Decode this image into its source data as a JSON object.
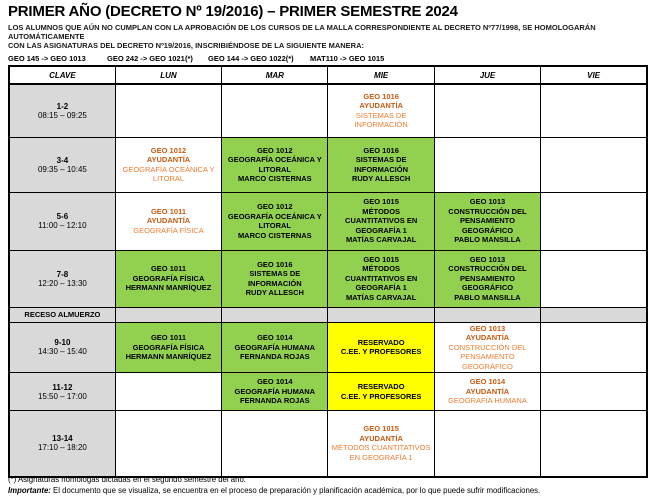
{
  "header": {
    "title": "PRIMER AÑO (DECRETO Nº 19/2016) – PRIMER SEMESTRE 2024",
    "note_line1": "LOS ALUMNOS QUE AÚN NO CUMPLAN CON LA APROBACIÓN DE LOS CURSOS DE LA MALLA CORRESPONDIENTE AL DECRETO Nº77/1998, SE HOMOLOGARÁN AUTOMÁTICAMENTE",
    "note_line2": "CON LAS ASIGNATURAS DEL DECRETO Nº19/2016, INSCRIBIÉNDOSE DE LA SIGUIENTE MANERA:",
    "mappings": [
      "GEO 145 -> GEO 1013",
      "GEO 242 -> GEO 1021",
      "(*)",
      "GEO 144 -> GEO 1022(*)",
      "MAT110 -> GEO 1015"
    ]
  },
  "colors": {
    "green": "#92D050",
    "yellow": "#FFFF00",
    "gray": "#D9D9D9",
    "orange_bold": "#C55A11",
    "orange_light": "#ED7D31"
  },
  "table": {
    "columns": [
      "CLAVE",
      "LUN",
      "MAR",
      "MIE",
      "JUE",
      "VIE"
    ],
    "receso_label": "RECESO ALMUERZO",
    "rows": [
      {
        "clave": "1-2",
        "time": "08:15 – 09:25",
        "cells": [
          null,
          null,
          {
            "bg": "white",
            "lines": [
              [
                "GEO 1016",
                "ob"
              ],
              [
                "AYUDANTÍA",
                "ob"
              ],
              [
                "SISTEMAS DE INFORMACIÓN",
                "on"
              ]
            ]
          },
          null,
          null
        ]
      },
      {
        "clave": "3-4",
        "time": "09:35 – 10:45",
        "cells": [
          {
            "bg": "white",
            "lines": [
              [
                "GEO 1012",
                "ob"
              ],
              [
                "AYUDANTÍA",
                "ob"
              ],
              [
                "GEOGRAFÍA OCEÁNICA Y LITORAL",
                "on"
              ]
            ]
          },
          {
            "bg": "green",
            "lines": [
              [
                "GEO 1012",
                "b"
              ],
              [
                "GEOGRAFÍA OCEÁNICA Y LITORAL",
                "n"
              ],
              [
                "MARCO CISTERNAS",
                "n"
              ]
            ]
          },
          {
            "bg": "green",
            "lines": [
              [
                "GEO 1016",
                "b"
              ],
              [
                "SISTEMAS DE INFORMACIÓN",
                "n"
              ],
              [
                "RUDY ALLESCH",
                "n"
              ]
            ]
          },
          null,
          null
        ]
      },
      {
        "clave": "5-6",
        "time": "11:00 – 12:10",
        "cells": [
          {
            "bg": "white",
            "lines": [
              [
                "GEO 1011",
                "ob"
              ],
              [
                "AYUDANTÍA",
                "ob"
              ],
              [
                "GEOGRAFÍA FÍSICA",
                "on"
              ]
            ]
          },
          {
            "bg": "green",
            "lines": [
              [
                "GEO 1012",
                "b"
              ],
              [
                "GEOGRAFÍA OCEÁNICA Y LITORAL",
                "n"
              ],
              [
                "MARCO CISTERNAS",
                "n"
              ]
            ]
          },
          {
            "bg": "green",
            "lines": [
              [
                "GEO 1015",
                "b"
              ],
              [
                "MÉTODOS CUANTITATIVOS EN GEOGRAFÍA 1",
                "n"
              ],
              [
                "MATÍAS CARVAJAL",
                "n"
              ]
            ]
          },
          {
            "bg": "green",
            "lines": [
              [
                "GEO 1013",
                "b"
              ],
              [
                "CONSTRUCCIÓN DEL PENSAMIENTO GEOGRÁFICO",
                "n"
              ],
              [
                "PABLO MANSILLA",
                "n"
              ]
            ]
          },
          null
        ]
      },
      {
        "clave": "7-8",
        "time": "12:20 – 13:30",
        "cells": [
          {
            "bg": "green",
            "lines": [
              [
                "GEO 1011",
                "b"
              ],
              [
                "GEOGRAFÍA FÍSICA",
                "n"
              ],
              [
                "HERMANN MANRÍQUEZ",
                "n"
              ]
            ]
          },
          {
            "bg": "green",
            "lines": [
              [
                "GEO 1016",
                "b"
              ],
              [
                "SISTEMAS DE INFORMACIÓN",
                "n"
              ],
              [
                "RUDY ALLESCH",
                "n"
              ]
            ]
          },
          {
            "bg": "green",
            "lines": [
              [
                "GEO 1015",
                "b"
              ],
              [
                "MÉTODOS CUANTITATIVOS EN GEOGRAFÍA 1",
                "n"
              ],
              [
                "MATÍAS CARVAJAL",
                "n"
              ]
            ]
          },
          {
            "bg": "green",
            "lines": [
              [
                "GEO 1013",
                "b"
              ],
              [
                "CONSTRUCCIÓN DEL PENSAMIENTO GEOGRÁFICO",
                "n"
              ],
              [
                "PABLO MANSILLA",
                "n"
              ]
            ]
          },
          null
        ]
      },
      {
        "type": "receso"
      },
      {
        "clave": "9-10",
        "time": "14:30 – 15:40",
        "cells": [
          {
            "bg": "green",
            "lines": [
              [
                "GEO 1011",
                "b"
              ],
              [
                "GEOGRAFÍA FÍSICA",
                "n"
              ],
              [
                "HERMANN MANRÍQUEZ",
                "n"
              ]
            ]
          },
          {
            "bg": "green",
            "lines": [
              [
                "GEO 1014",
                "b"
              ],
              [
                "GEOGRAFÍA HUMANA",
                "n"
              ],
              [
                "FERNANDA ROJAS",
                "n"
              ]
            ]
          },
          {
            "bg": "yellow",
            "lines": [
              [
                "RESERVADO",
                "b"
              ],
              [
                "C.EE. Y PROFESORES",
                "b"
              ]
            ]
          },
          {
            "bg": "white",
            "lines": [
              [
                "GEO 1013",
                "ob"
              ],
              [
                "AYUDANTÍA",
                "ob"
              ],
              [
                "CONSTRUCCIÓN DEL PENSAMIENTO GEOGRÁFICO",
                "on"
              ]
            ]
          },
          null
        ]
      },
      {
        "clave": "11-12",
        "time": "15:50 – 17:00",
        "cells": [
          null,
          {
            "bg": "green",
            "lines": [
              [
                "GEO 1014",
                "b"
              ],
              [
                "GEOGRAFÍA HUMANA",
                "n"
              ],
              [
                "FERNANDA ROJAS",
                "n"
              ]
            ]
          },
          {
            "bg": "yellow",
            "lines": [
              [
                "RESERVADO",
                "b"
              ],
              [
                "C.EE. Y PROFESORES",
                "b"
              ]
            ]
          },
          {
            "bg": "white",
            "lines": [
              [
                "GEO 1014",
                "ob"
              ],
              [
                "AYUDANTÍA",
                "ob"
              ],
              [
                "GEOGRAFÍA HUMANA",
                "on"
              ]
            ]
          },
          null
        ]
      },
      {
        "clave": "13-14",
        "time": "17:10 – 18:20",
        "cells": [
          null,
          null,
          {
            "bg": "white",
            "lines": [
              [
                "GEO 1015",
                "ob"
              ],
              [
                "AYUDANTÍA",
                "ob"
              ],
              [
                "MÉTODOS CUANTITATIVOS EN GEOGRAFÍA 1",
                "on"
              ]
            ]
          },
          null,
          null
        ]
      }
    ]
  },
  "footer": {
    "line1": "(*) Asignaturas homólogas dictadas en el segundo semestre del año.",
    "important_label": "Importante:",
    "important_rest": " El documento que se visualiza, se encuentra en el proceso de preparación y planificación académica, por lo que puede sufrir modificaciones."
  }
}
